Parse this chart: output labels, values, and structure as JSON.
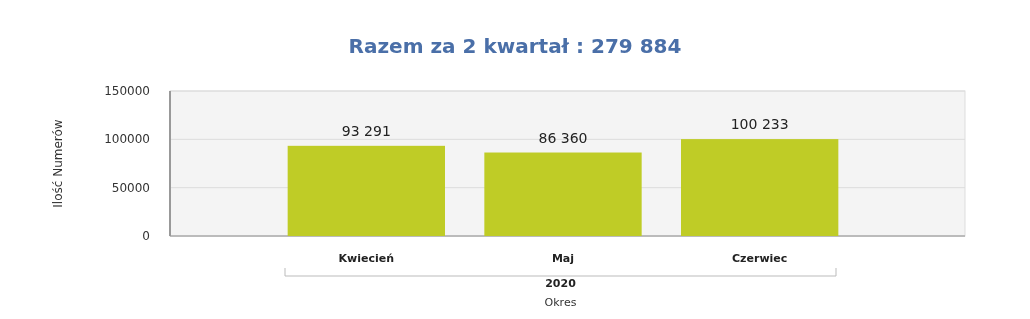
{
  "chart_data": {
    "type": "bar",
    "title": "Razem za 2 kwartał : 279 884",
    "xlabel": "Okres",
    "ylabel": "Ilość Numerów",
    "categories": [
      "Kwiecień",
      "Maj",
      "Czerwiec"
    ],
    "values": [
      93291,
      86360,
      100233
    ],
    "value_labels": [
      "93 291",
      "86 360",
      "100 233"
    ],
    "color": "#bfcc26",
    "ylim": [
      0,
      150000
    ],
    "yticks": [
      0,
      50000,
      100000,
      150000
    ],
    "grid": "y",
    "annotations": [
      "2020"
    ]
  }
}
